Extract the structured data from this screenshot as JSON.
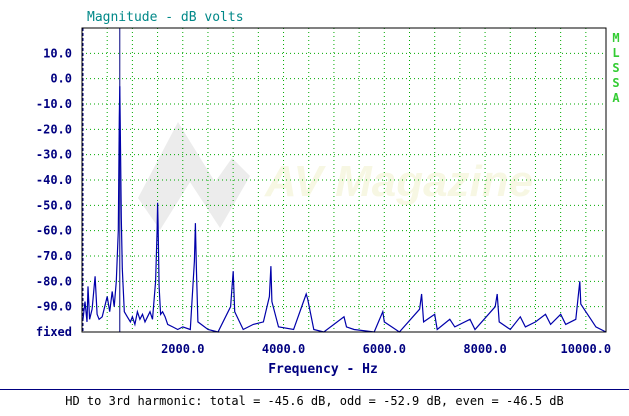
{
  "chart_data": {
    "type": "line",
    "title": "Magnitude - dB volts",
    "xlabel": "Frequency - Hz",
    "ylabel": "",
    "side_label": [
      "M",
      "L",
      "S",
      "S",
      "A"
    ],
    "watermark": "AV Magazine",
    "xlim": [
      0,
      10400
    ],
    "ylim": [
      -100,
      20
    ],
    "x_ticks": [
      {
        "value": 2000,
        "label": "2000.0"
      },
      {
        "value": 4000,
        "label": "4000.0"
      },
      {
        "value": 6000,
        "label": "6000.0"
      },
      {
        "value": 8000,
        "label": "8000.0"
      },
      {
        "value": 10000,
        "label": "10000.0"
      }
    ],
    "y_ticks": [
      {
        "value": 10,
        "label": "10.0"
      },
      {
        "value": 0,
        "label": "0.0"
      },
      {
        "value": -10,
        "label": "-10.0"
      },
      {
        "value": -20,
        "label": "-20.0"
      },
      {
        "value": -30,
        "label": "-30.0"
      },
      {
        "value": -40,
        "label": "-40.0"
      },
      {
        "value": -50,
        "label": "-50.0"
      },
      {
        "value": -60,
        "label": "-60.0"
      },
      {
        "value": -70,
        "label": "-70.0"
      },
      {
        "value": -80,
        "label": "-80.0"
      },
      {
        "value": -90,
        "label": "-90.0"
      },
      {
        "value": -100,
        "label": "fixed"
      }
    ],
    "grid": true,
    "markers": [
      {
        "x": 20,
        "style": "dashed"
      },
      {
        "x": 750,
        "style": "solid"
      }
    ],
    "series": [
      {
        "points": [
          [
            20,
            -95
          ],
          [
            60,
            -88
          ],
          [
            100,
            -96
          ],
          [
            120,
            -82
          ],
          [
            150,
            -95
          ],
          [
            200,
            -91
          ],
          [
            260,
            -78
          ],
          [
            300,
            -93
          ],
          [
            340,
            -95
          ],
          [
            400,
            -94
          ],
          [
            450,
            -90
          ],
          [
            500,
            -86
          ],
          [
            550,
            -92
          ],
          [
            600,
            -84
          ],
          [
            640,
            -90
          ],
          [
            680,
            -80
          ],
          [
            720,
            -60
          ],
          [
            740,
            -15
          ],
          [
            750,
            -3
          ],
          [
            760,
            -20
          ],
          [
            780,
            -55
          ],
          [
            800,
            -75
          ],
          [
            840,
            -92
          ],
          [
            900,
            -94
          ],
          [
            960,
            -96
          ],
          [
            1000,
            -94
          ],
          [
            1050,
            -97
          ],
          [
            1100,
            -92
          ],
          [
            1150,
            -95
          ],
          [
            1200,
            -93
          ],
          [
            1250,
            -96
          ],
          [
            1300,
            -94
          ],
          [
            1350,
            -92
          ],
          [
            1400,
            -95
          ],
          [
            1460,
            -80
          ],
          [
            1490,
            -60
          ],
          [
            1500,
            -49
          ],
          [
            1510,
            -58
          ],
          [
            1530,
            -82
          ],
          [
            1560,
            -93
          ],
          [
            1600,
            -92
          ],
          [
            1650,
            -94
          ],
          [
            1700,
            -97
          ],
          [
            1800,
            -98
          ],
          [
            1900,
            -99
          ],
          [
            2000,
            -98
          ],
          [
            2150,
            -99
          ],
          [
            2230,
            -72
          ],
          [
            2250,
            -57
          ],
          [
            2270,
            -75
          ],
          [
            2300,
            -96
          ],
          [
            2500,
            -99
          ],
          [
            2700,
            -100
          ],
          [
            2950,
            -90
          ],
          [
            3000,
            -76
          ],
          [
            3030,
            -92
          ],
          [
            3200,
            -99
          ],
          [
            3400,
            -97
          ],
          [
            3600,
            -96
          ],
          [
            3720,
            -86
          ],
          [
            3750,
            -74
          ],
          [
            3770,
            -88
          ],
          [
            3900,
            -98
          ],
          [
            4200,
            -99
          ],
          [
            4450,
            -85
          ],
          [
            4480,
            -87
          ],
          [
            4600,
            -99
          ],
          [
            4800,
            -100
          ],
          [
            5200,
            -94
          ],
          [
            5250,
            -98
          ],
          [
            5400,
            -99
          ],
          [
            5800,
            -100
          ],
          [
            5970,
            -92
          ],
          [
            6000,
            -96
          ],
          [
            6300,
            -100
          ],
          [
            6700,
            -91
          ],
          [
            6740,
            -85
          ],
          [
            6780,
            -96
          ],
          [
            7000,
            -93
          ],
          [
            7050,
            -99
          ],
          [
            7300,
            -95
          ],
          [
            7400,
            -98
          ],
          [
            7700,
            -95
          ],
          [
            7800,
            -99
          ],
          [
            8200,
            -90
          ],
          [
            8240,
            -85
          ],
          [
            8280,
            -96
          ],
          [
            8500,
            -99
          ],
          [
            8700,
            -94
          ],
          [
            8800,
            -98
          ],
          [
            9000,
            -96
          ],
          [
            9200,
            -93
          ],
          [
            9300,
            -97
          ],
          [
            9500,
            -93
          ],
          [
            9600,
            -97
          ],
          [
            9800,
            -95
          ],
          [
            9880,
            -80
          ],
          [
            9900,
            -89
          ],
          [
            10000,
            -92
          ],
          [
            10100,
            -95
          ],
          [
            10200,
            -98
          ],
          [
            10400,
            -100
          ]
        ]
      }
    ]
  },
  "footer": {
    "text": "HD to 3rd harmonic: total = -45.6 dB, odd = -52.9 dB, even = -46.5 dB"
  },
  "colors": {
    "title": "#008888",
    "axis_text": "#000080",
    "grid": "#00aa00",
    "trace": "#0000aa",
    "side_label": "#33cc33",
    "frame": "#000000"
  }
}
